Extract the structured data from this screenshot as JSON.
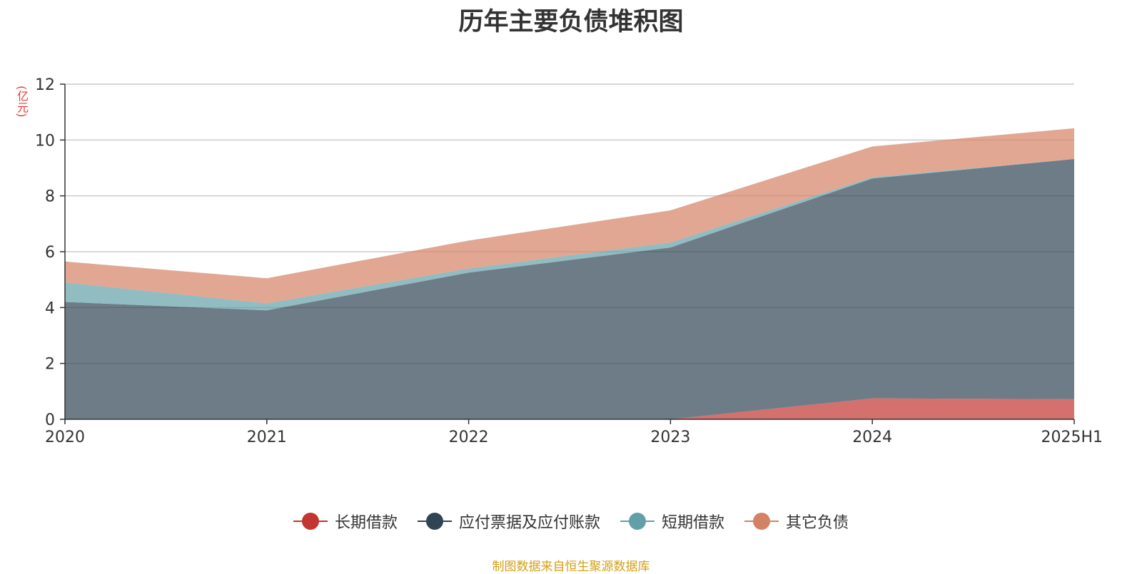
{
  "chart_data": {
    "type": "area",
    "title": "历年主要负债堆积图",
    "ylabel": "(亿元)",
    "xlabel": "",
    "categories": [
      "2020",
      "2021",
      "2022",
      "2023",
      "2024",
      "2025H1"
    ],
    "ylim": [
      0,
      12
    ],
    "yticks": [
      0,
      2,
      4,
      6,
      8,
      10,
      12
    ],
    "stacked": true,
    "grid": true,
    "legend_position": "bottom",
    "series": [
      {
        "name": "长期借款",
        "color": "#c23531",
        "values": [
          0,
          0,
          0,
          0,
          0.75,
          0.72
        ]
      },
      {
        "name": "应付票据及应付账款",
        "color": "#2f4554",
        "values": [
          4.2,
          3.9,
          5.25,
          6.15,
          7.87,
          8.6
        ]
      },
      {
        "name": "短期借款",
        "color": "#61a0a8",
        "values": [
          0.7,
          0.25,
          0.15,
          0.18,
          0.05,
          0
        ]
      },
      {
        "name": "其它负债",
        "color": "#d48265",
        "values": [
          0.75,
          0.9,
          1.0,
          1.15,
          1.1,
          1.1
        ]
      }
    ]
  },
  "footer": {
    "source": "制图数据来自恒生聚源数据库"
  }
}
